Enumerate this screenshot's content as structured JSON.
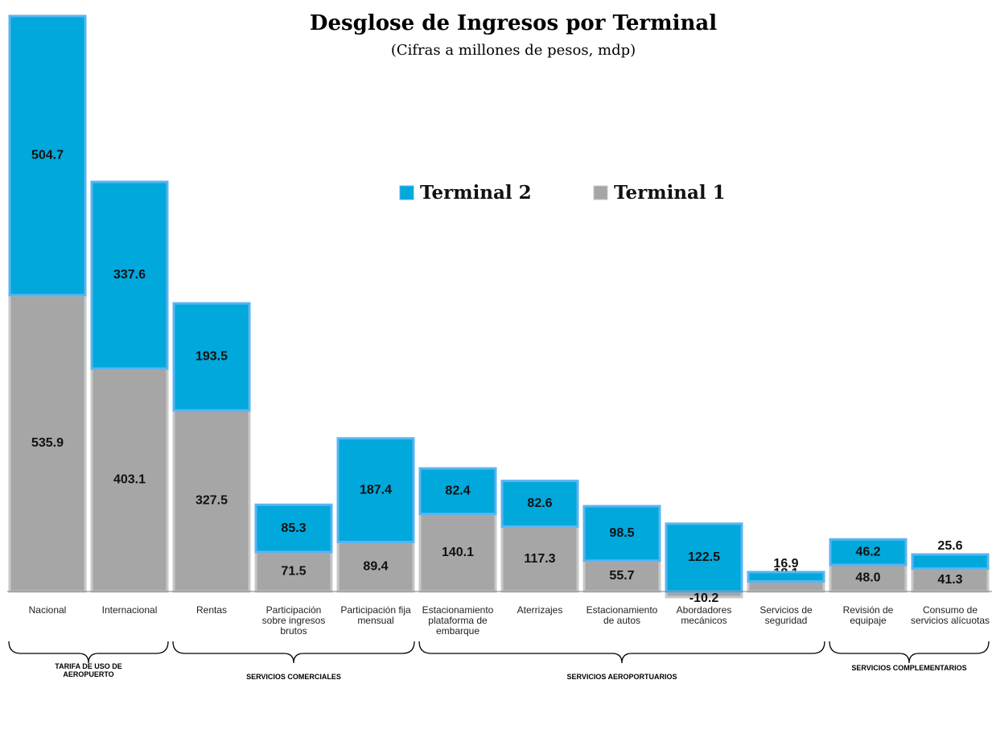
{
  "chart_data": {
    "type": "stacked-bar",
    "title": "Desglose de Ingresos por Terminal",
    "subtitle": "(Cifras a millones de pesos, mdp)",
    "categories": [
      "Nacional",
      "Internacional",
      "Rentas",
      "Participación\nsobre ingresos\nbrutos",
      "Participación fija\nmensual",
      "Estacionamiento\nplataforma de\nembarque",
      "Aterrizajes",
      "Estacionamiento\nde autos",
      "Abordadores\nmecánicos",
      "Servicios de\nseguridad",
      "Revisión de\nequipaje",
      "Consumo de\nservicios alícuotas"
    ],
    "series": [
      {
        "name": "Terminal 1",
        "color": "#a6a6a6",
        "edge": "#c8c8c8",
        "values": [
          535.9,
          403.1,
          327.5,
          71.5,
          89.4,
          140.1,
          117.3,
          55.7,
          -10.2,
          18.1,
          48.0,
          41.3
        ],
        "value_labels": [
          "535.9",
          "403.1",
          "327.5",
          "71.5",
          "89.4",
          "140.1",
          "117.3",
          "55.7",
          "-10.2",
          "18.1",
          "48.0",
          "41.3"
        ]
      },
      {
        "name": "Terminal 2",
        "color": "#00a8dc",
        "edge": "#5ab4f0",
        "values": [
          504.7,
          337.6,
          193.5,
          85.3,
          187.4,
          82.4,
          82.6,
          98.5,
          122.5,
          16.9,
          46.2,
          25.6
        ],
        "value_labels": [
          "504.7",
          "337.6",
          "193.5",
          "85.3",
          "187.4",
          "82.4",
          "82.6",
          "98.5",
          "122.5",
          "16.9",
          "46.2",
          "25.6"
        ]
      }
    ],
    "legend_order": [
      1,
      0
    ],
    "ylim": [
      -100,
      1050
    ],
    "groups": [
      {
        "label": "TARIFA DE USO DE\nAEROPUERTO",
        "span": 2
      },
      {
        "label": "SERVICIOS COMERCIALES",
        "span": 3
      },
      {
        "label": "SERVICIOS AEROPORTUARIOS",
        "span": 5
      },
      {
        "label": "SERVICIOS COMPLEMENTARIOS",
        "span": 2
      }
    ]
  }
}
